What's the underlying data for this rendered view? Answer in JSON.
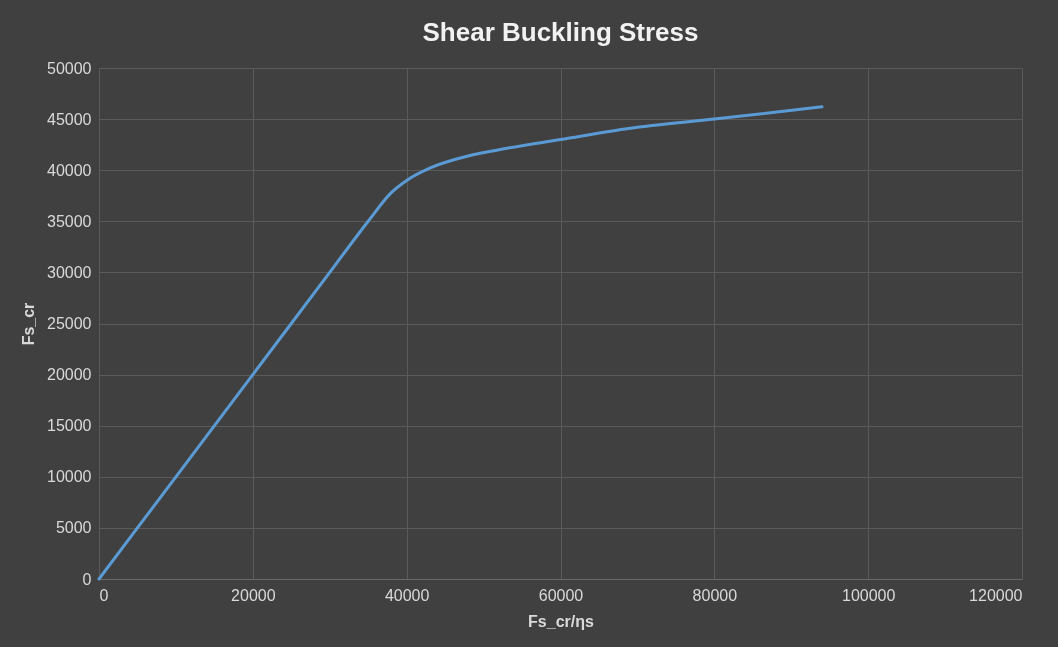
{
  "chart_data": {
    "type": "line",
    "title": "Shear Buckling Stress",
    "xlabel": "Fs_cr/ηs",
    "ylabel": "Fs_cr",
    "series": [
      {
        "color": "#5b9bd5",
        "x": [
          0,
          10000,
          20000,
          30000,
          35000,
          38000,
          40000,
          43000,
          47000,
          52000,
          60000,
          70000,
          80000,
          94000
        ],
        "values": [
          0,
          10000,
          20000,
          30000,
          35000,
          37800,
          39000,
          40200,
          41200,
          42000,
          43000,
          44200,
          45000,
          46200
        ]
      }
    ],
    "xlim": [
      0,
      120000
    ],
    "xticks": [
      0,
      20000,
      40000,
      60000,
      80000,
      100000,
      120000
    ],
    "ylim": [
      0,
      50000
    ],
    "yticks": [
      0,
      5000,
      10000,
      15000,
      20000,
      25000,
      30000,
      35000,
      40000,
      45000,
      50000
    ],
    "grid": true,
    "marker": "none",
    "line_style": "solid"
  }
}
